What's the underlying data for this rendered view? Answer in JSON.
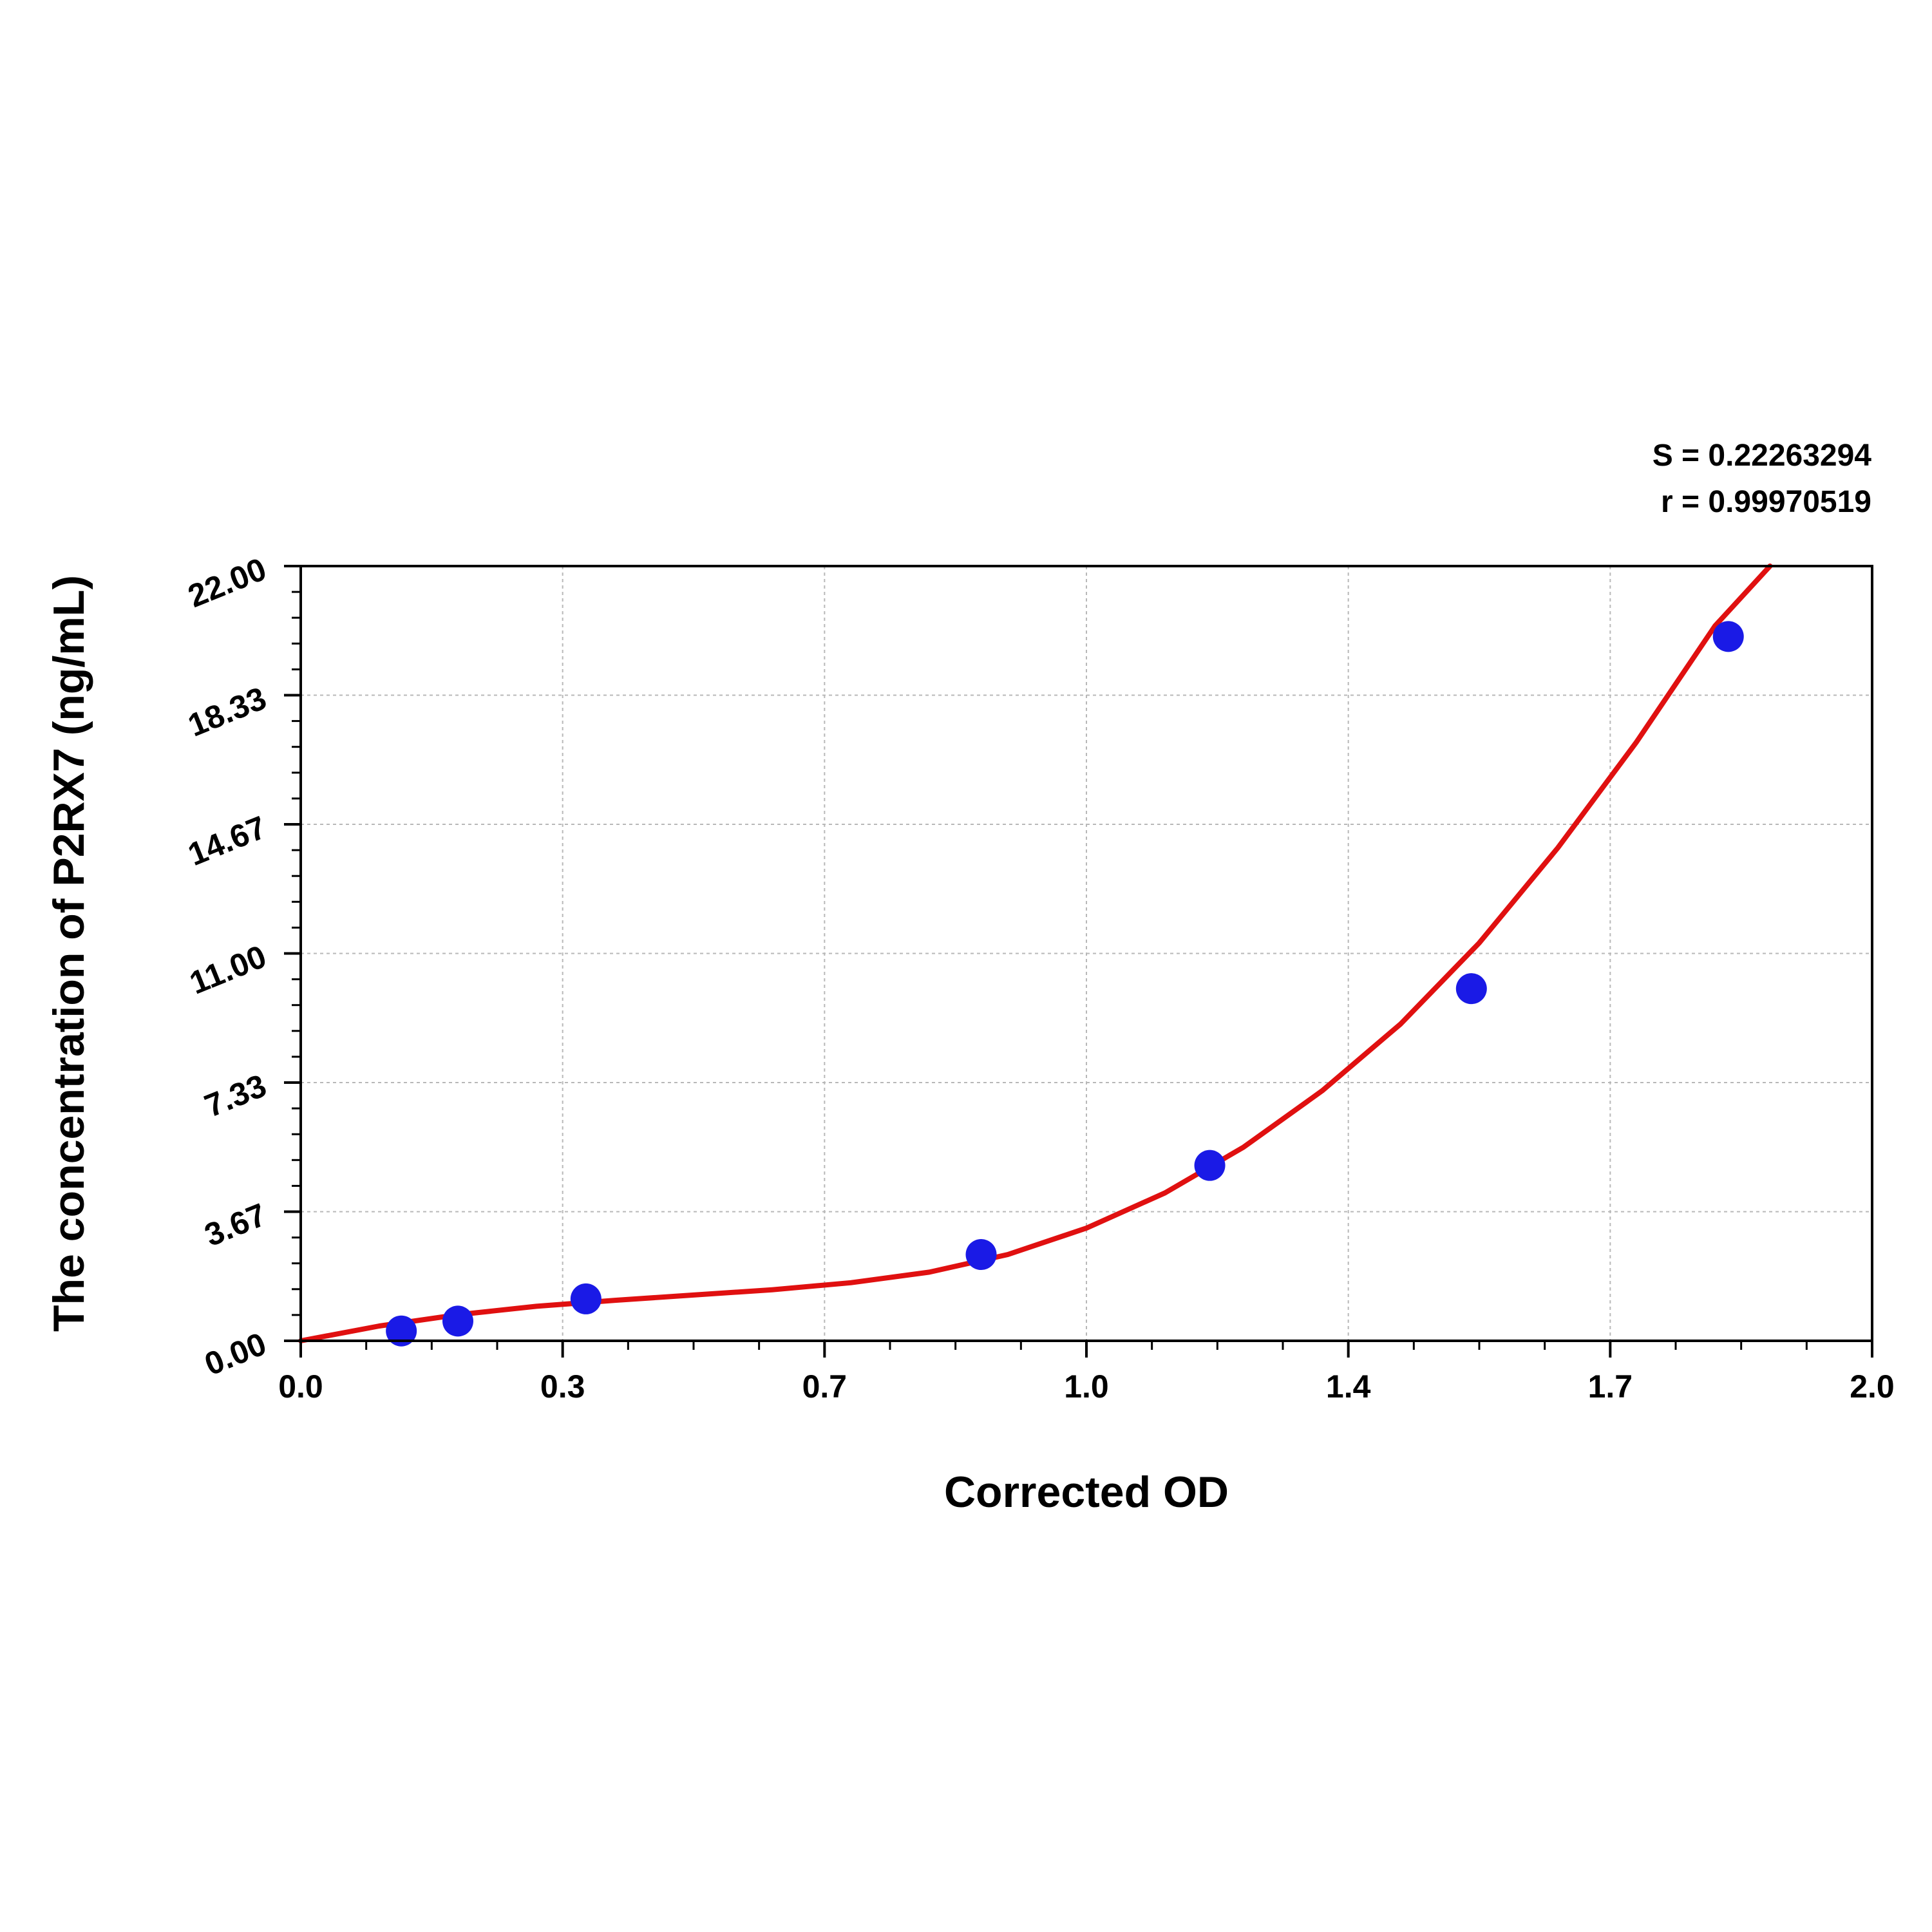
{
  "stats": {
    "s_label": "S = 0.22263294",
    "r_label": "r = 0.99970519"
  },
  "chart_data": {
    "type": "scatter",
    "xlabel": "Corrected OD",
    "ylabel": "The concentration of P2RX7 (ng/mL)",
    "xlim": [
      0,
      2.0
    ],
    "ylim": [
      0,
      22.0
    ],
    "x_ticks": [
      "0.0",
      "0.3",
      "0.7",
      "1.0",
      "1.4",
      "1.7",
      "2.0"
    ],
    "y_ticks": [
      "0.00",
      "3.67",
      "7.33",
      "11.00",
      "14.67",
      "18.33",
      "22.00"
    ],
    "grid": true,
    "points": {
      "color": "#1a1ae6",
      "x": [
        0.128,
        0.2,
        0.363,
        0.866,
        1.157,
        1.49,
        1.817
      ],
      "y": [
        0.28,
        0.56,
        1.19,
        2.45,
        4.98,
        10.0,
        20.0
      ]
    },
    "fit_curve": {
      "color": "#e01010",
      "x": [
        0.0,
        0.1,
        0.2,
        0.3,
        0.4,
        0.5,
        0.6,
        0.7,
        0.8,
        0.9,
        1.0,
        1.1,
        1.2,
        1.3,
        1.4,
        1.5,
        1.6,
        1.7,
        1.8,
        1.87
      ],
      "y": [
        0.0,
        0.42,
        0.74,
        0.98,
        1.15,
        1.3,
        1.45,
        1.65,
        1.95,
        2.45,
        3.2,
        4.2,
        5.5,
        7.1,
        9.0,
        11.3,
        14.0,
        17.0,
        20.3,
        22.0
      ]
    }
  }
}
